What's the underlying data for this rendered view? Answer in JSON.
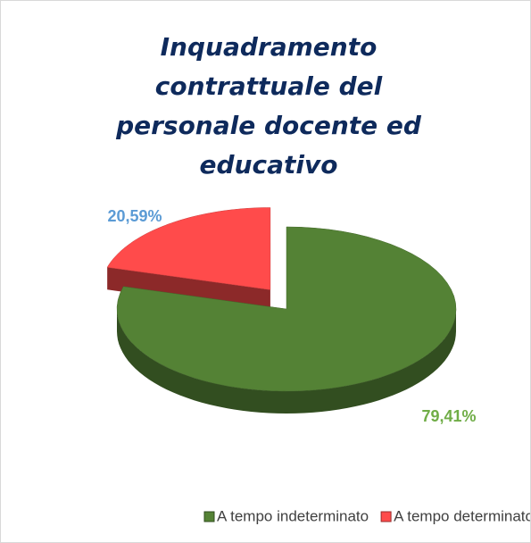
{
  "chart_data": {
    "type": "pie3d",
    "title": "Inquadramento contrattuale del personale docente ed educativo",
    "categories": [
      "A tempo indeterminato",
      "A tempo determinato"
    ],
    "values": [
      79.41,
      20.59
    ],
    "value_labels": [
      "79,41%",
      "20,59%"
    ],
    "colors": [
      "#548235",
      "#ff4b4b"
    ],
    "label_colors": [
      "#70ad47",
      "#5b9bd5"
    ],
    "legend": "bottom"
  }
}
